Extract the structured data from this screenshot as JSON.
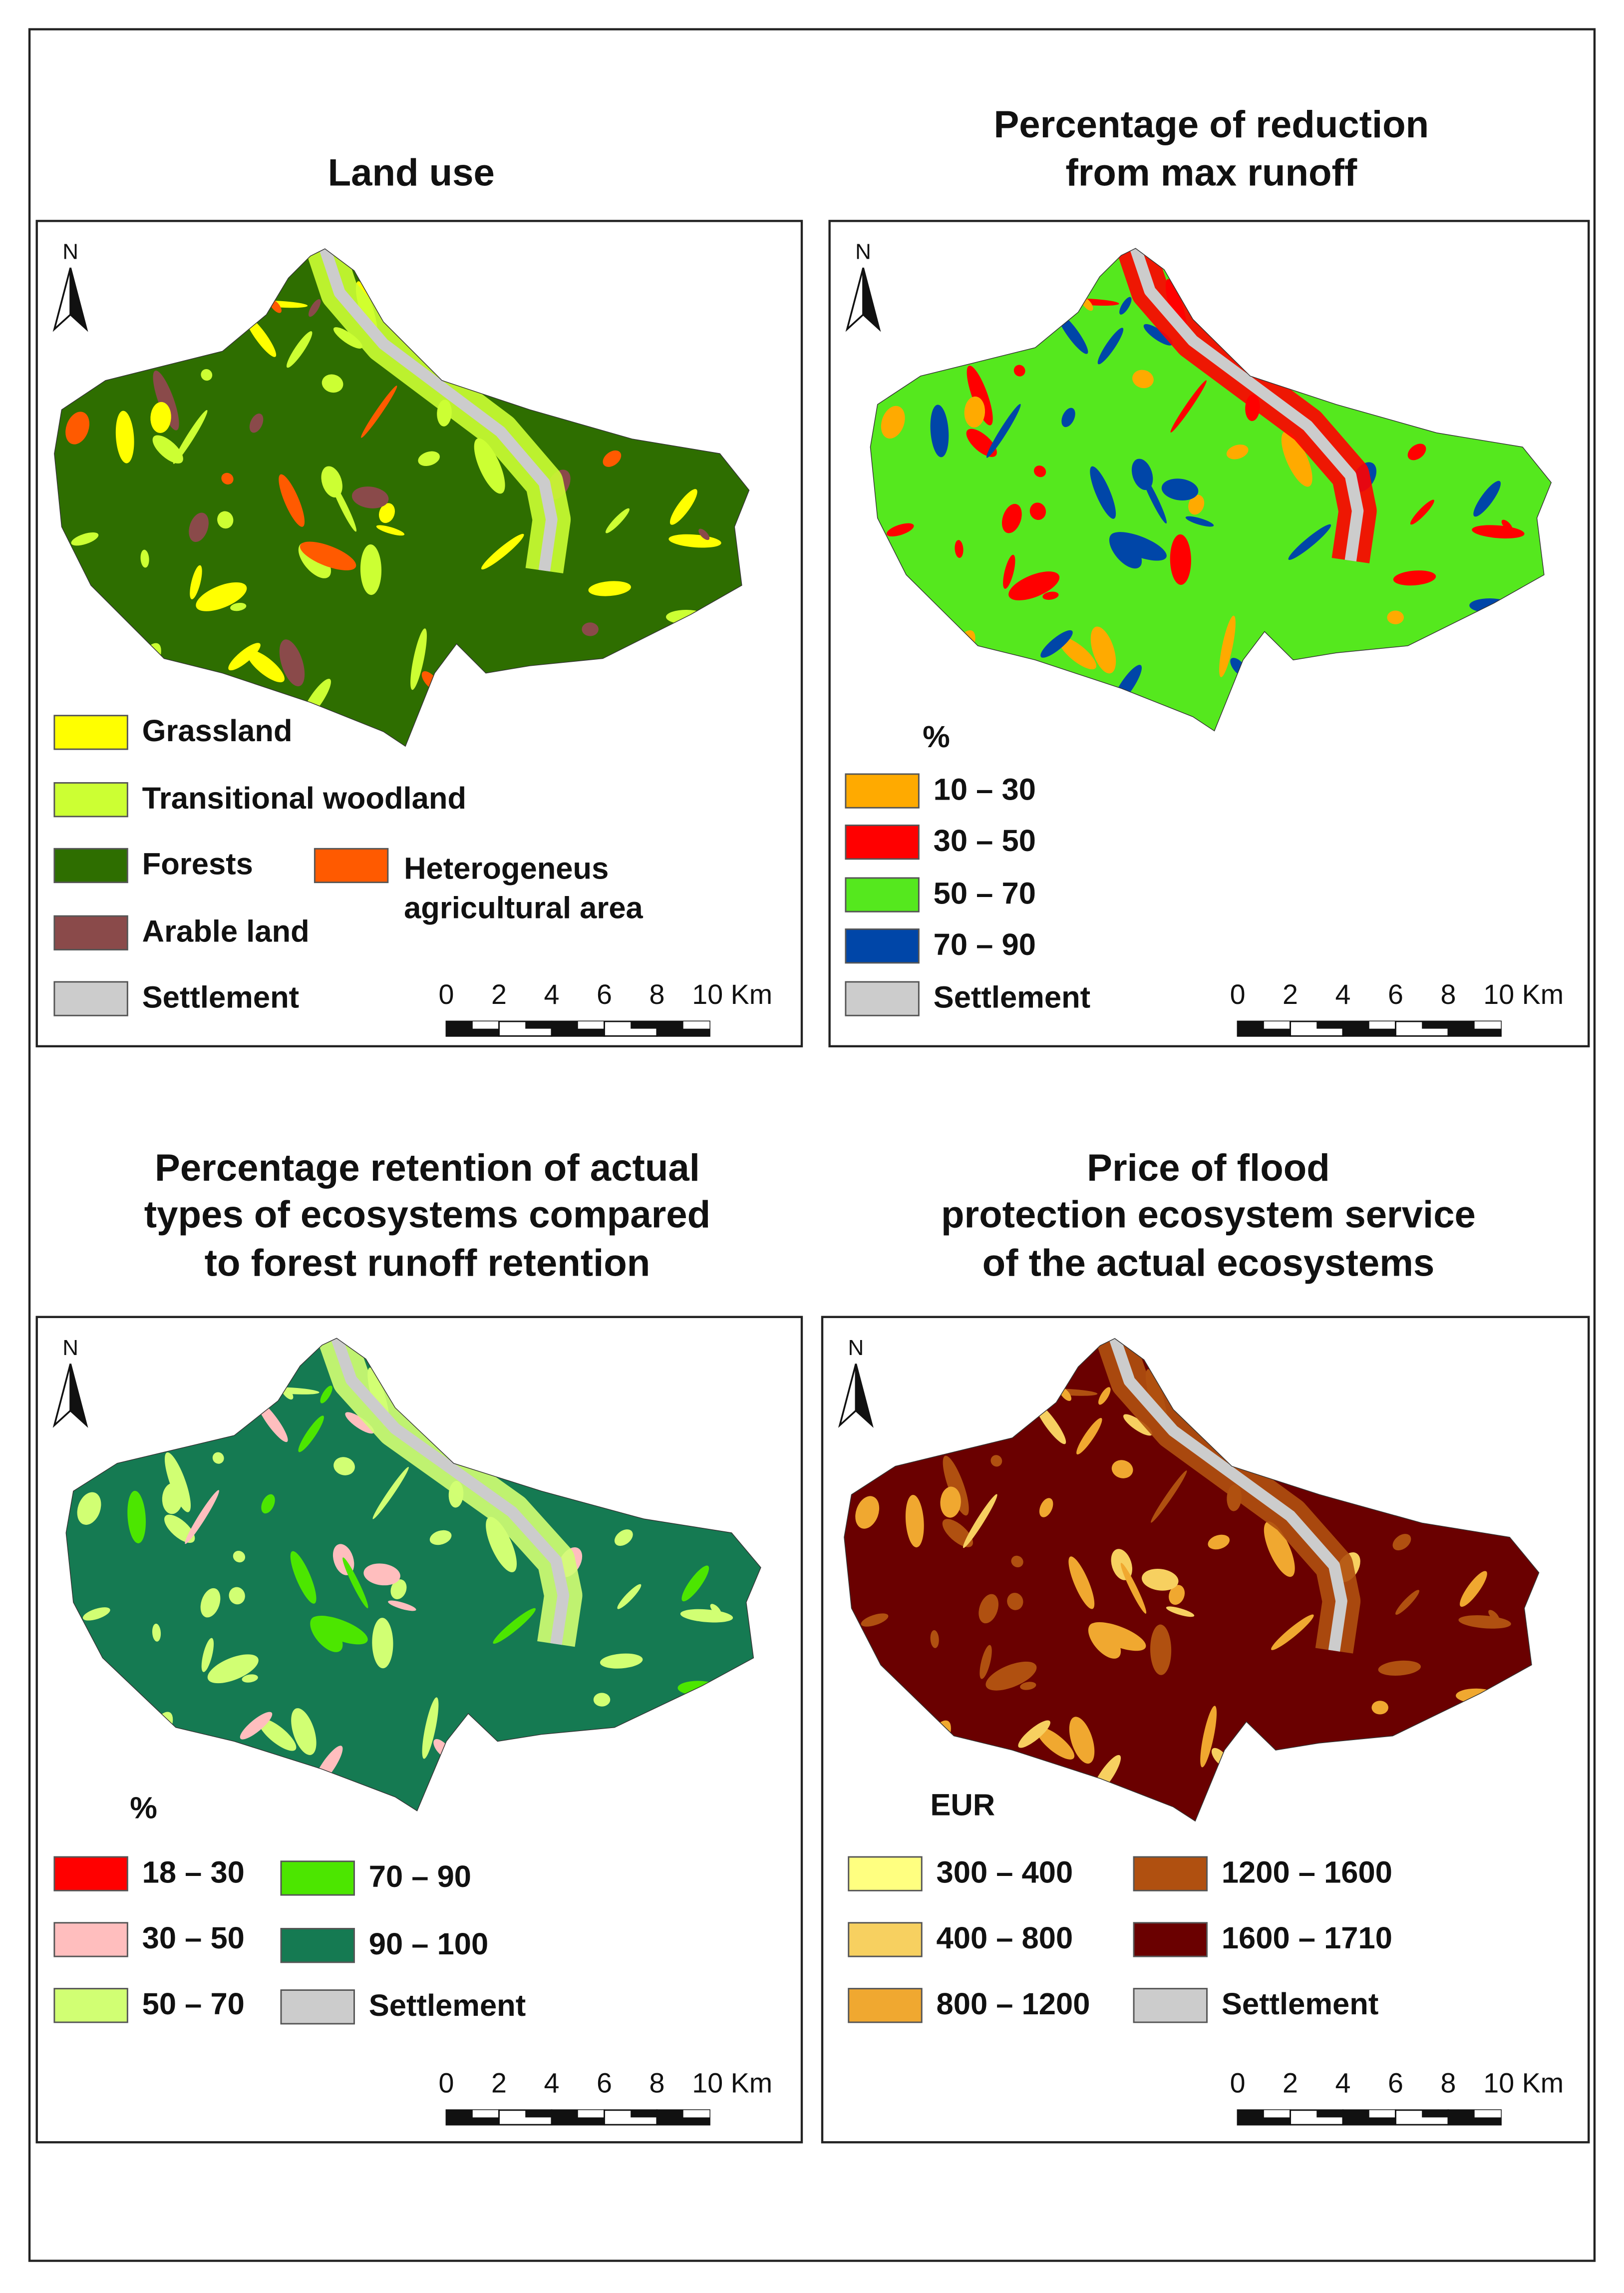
{
  "panels": [
    {
      "title": [
        "Land use"
      ],
      "legend": [
        {
          "label": "Grassland",
          "color": "#ffff00"
        },
        {
          "label": "Transitional woodland",
          "color": "#ccff33"
        },
        {
          "label": "Forests",
          "color": "#2e6e00"
        },
        {
          "label": "Arable land",
          "color": "#8a4a4a"
        },
        {
          "label": "Settlement",
          "color": "#cccccc"
        },
        {
          "label": [
            "Heterogeneus",
            "agricultural area"
          ],
          "color": "#ff5a00"
        }
      ],
      "scale": [
        "0",
        "2",
        "4",
        "6",
        "8",
        "10 Km"
      ],
      "north": "N"
    },
    {
      "title": [
        "Percentage of reduction",
        "from max runoff"
      ],
      "legend_title": "%",
      "legend": [
        {
          "label": "10 – 30",
          "color": "#ffaa00"
        },
        {
          "label": "30 – 50",
          "color": "#ff0000"
        },
        {
          "label": "50 – 70",
          "color": "#55e81e"
        },
        {
          "label": "70 – 90",
          "color": "#0046a8"
        },
        {
          "label": "Settlement",
          "color": "#cccccc"
        }
      ],
      "scale": [
        "0",
        "2",
        "4",
        "6",
        "8",
        "10 Km"
      ],
      "north": "N"
    },
    {
      "title": [
        "Percentage retention of actual",
        "types of ecosystems compared",
        "to forest runoff retention"
      ],
      "legend_title": "%",
      "legend": [
        {
          "label": "18 – 30",
          "color": "#ff0000"
        },
        {
          "label": "30 – 50",
          "color": "#ffbebe"
        },
        {
          "label": "50 – 70",
          "color": "#d1ff73"
        },
        {
          "label": "70 – 90",
          "color": "#4ce600"
        },
        {
          "label": "90 – 100",
          "color": "#157a52"
        },
        {
          "label": "Settlement",
          "color": "#cccccc"
        }
      ],
      "scale": [
        "0",
        "2",
        "4",
        "6",
        "8",
        "10 Km"
      ],
      "north": "N"
    },
    {
      "title": [
        "Price of flood",
        "protection ecosystem service",
        "of the actual ecosystems"
      ],
      "legend_title": "EUR",
      "legend": [
        {
          "label": "300 – 400",
          "color": "#ffff80"
        },
        {
          "label": "400 – 800",
          "color": "#f7d060"
        },
        {
          "label": "800 – 1200",
          "color": "#f0a830"
        },
        {
          "label": "1200 – 1600",
          "color": "#b05010"
        },
        {
          "label": "1600 – 1710",
          "color": "#6a0000"
        },
        {
          "label": "Settlement",
          "color": "#cccccc"
        }
      ],
      "scale": [
        "0",
        "2",
        "4",
        "6",
        "8",
        "10 Km"
      ],
      "north": "N"
    }
  ]
}
